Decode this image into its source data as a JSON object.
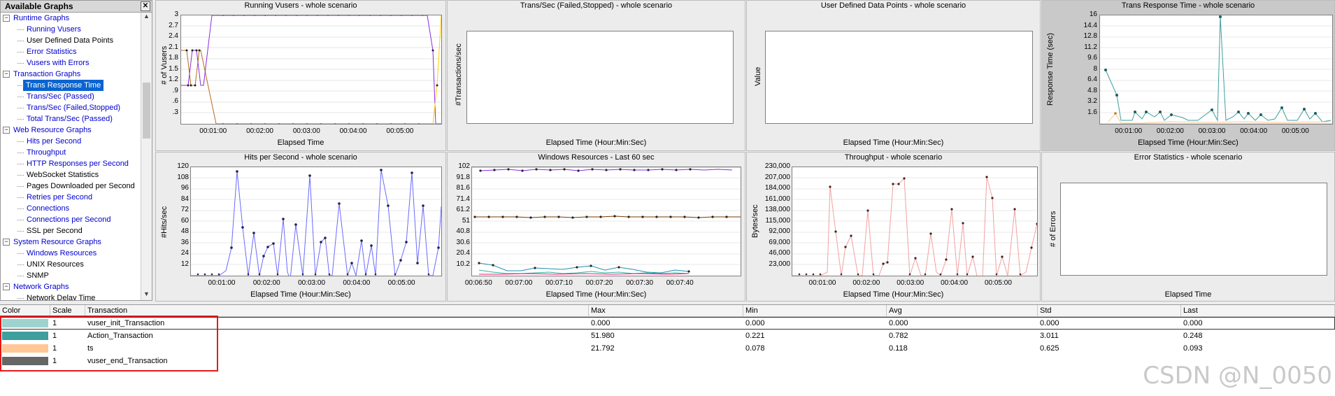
{
  "tree": {
    "title": "Available Graphs",
    "close": "✕",
    "items": [
      {
        "label": "Runtime Graphs",
        "kind": "cat",
        "expander": "−"
      },
      {
        "label": "Running Vusers",
        "kind": "link"
      },
      {
        "label": "User Defined Data Points",
        "kind": "plain"
      },
      {
        "label": "Error Statistics",
        "kind": "link"
      },
      {
        "label": "Vusers with Errors",
        "kind": "link"
      },
      {
        "label": "Transaction Graphs",
        "kind": "cat",
        "expander": "−"
      },
      {
        "label": "Trans Response Time",
        "kind": "sel"
      },
      {
        "label": "Trans/Sec (Passed)",
        "kind": "link"
      },
      {
        "label": "Trans/Sec (Failed,Stopped)",
        "kind": "link"
      },
      {
        "label": "Total Trans/Sec (Passed)",
        "kind": "link"
      },
      {
        "label": "Web Resource Graphs",
        "kind": "cat",
        "expander": "−"
      },
      {
        "label": "Hits per Second",
        "kind": "link"
      },
      {
        "label": "Throughput",
        "kind": "link"
      },
      {
        "label": "HTTP Responses per Second",
        "kind": "link"
      },
      {
        "label": "WebSocket Statistics",
        "kind": "plain"
      },
      {
        "label": "Pages Downloaded per Second",
        "kind": "plain"
      },
      {
        "label": "Retries per Second",
        "kind": "link"
      },
      {
        "label": "Connections",
        "kind": "link"
      },
      {
        "label": "Connections per Second",
        "kind": "link"
      },
      {
        "label": "SSL per Second",
        "kind": "plain"
      },
      {
        "label": "System Resource Graphs",
        "kind": "cat",
        "expander": "−"
      },
      {
        "label": "Windows Resources",
        "kind": "link"
      },
      {
        "label": "UNIX Resources",
        "kind": "plain"
      },
      {
        "label": "SNMP",
        "kind": "plain"
      },
      {
        "label": "Network Graphs",
        "kind": "cat",
        "expander": "−"
      },
      {
        "label": "Network Delay Time",
        "kind": "plain"
      }
    ]
  },
  "graphs": {
    "running_vusers": {
      "title": "Running Vusers - whole scenario",
      "ylabel": "# of Vusers",
      "xlabel": "Elapsed Time",
      "yticks": [
        "3",
        "2.7",
        "2.4",
        "2.1",
        "1.8",
        "1.5",
        "1.2",
        ".9",
        ".6",
        ".3"
      ],
      "xticks": [
        "00:01:00",
        "00:02:00",
        "00:03:00",
        "00:04:00",
        "00:05:00"
      ]
    },
    "trans_failed": {
      "title": "Trans/Sec (Failed,Stopped) - whole scenario",
      "ylabel": "#Transactions/sec",
      "xlabel": "Elapsed Time (Hour:Min:Sec)"
    },
    "user_defined": {
      "title": "User Defined Data Points - whole scenario",
      "ylabel": "Value",
      "xlabel": "Elapsed Time (Hour:Min:Sec)"
    },
    "trans_response": {
      "title": "Trans Response Time - whole scenario",
      "ylabel": "Response Time (sec)",
      "xlabel": "Elapsed Time (Hour:Min:Sec)",
      "yticks": [
        "16",
        "14.4",
        "12.8",
        "11.2",
        "9.6",
        "8",
        "6.4",
        "4.8",
        "3.2",
        "1.6"
      ],
      "xticks": [
        "00:01:00",
        "00:02:00",
        "00:03:00",
        "00:04:00",
        "00:05:00"
      ]
    },
    "hits": {
      "title": "Hits per Second - whole scenario",
      "ylabel": "#Hits/sec",
      "xlabel": "Elapsed Time (Hour:Min:Sec)",
      "yticks": [
        "120",
        "108",
        "96",
        "84",
        "72",
        "60",
        "48",
        "36",
        "24",
        "12"
      ],
      "xticks": [
        "00:01:00",
        "00:02:00",
        "00:03:00",
        "00:04:00",
        "00:05:00"
      ]
    },
    "windows": {
      "title": "Windows Resources - Last 60 sec",
      "xlabel": "Elapsed Time (Hour:Min:Sec)",
      "yticks": [
        "102",
        "91.8",
        "81.6",
        "71.4",
        "61.2",
        "51",
        "40.8",
        "30.6",
        "20.4",
        "10.2"
      ],
      "xticks": [
        "00:06:50",
        "00:07:00",
        "00:07:10",
        "00:07:20",
        "00:07:30",
        "00:07:40"
      ]
    },
    "throughput": {
      "title": "Throughput - whole scenario",
      "ylabel": "Bytes/sec",
      "xlabel": "Elapsed Time (Hour:Min:Sec)",
      "yticks": [
        "230,000",
        "207,000",
        "184,000",
        "161,000",
        "138,000",
        "115,000",
        "92,000",
        "69,000",
        "46,000",
        "23,000"
      ],
      "xticks": [
        "00:01:00",
        "00:02:00",
        "00:03:00",
        "00:04:00",
        "00:05:00"
      ]
    },
    "errors": {
      "title": "Error Statistics - whole scenario",
      "ylabel": "# of Errors",
      "xlabel": "Elapsed Time"
    }
  },
  "legend": {
    "headers": {
      "color": "Color",
      "scale": "Scale",
      "transaction": "Transaction",
      "max": "Max",
      "min": "Min",
      "avg": "Avg",
      "std": "Std",
      "last": "Last"
    },
    "rows": [
      {
        "color": "#9fd2cf",
        "scale": "1",
        "transaction": "vuser_init_Transaction",
        "max": "0.000",
        "min": "0.000",
        "avg": "0.000",
        "std": "0.000",
        "last": "0.000"
      },
      {
        "color": "#3f9e9e",
        "scale": "1",
        "transaction": "Action_Transaction",
        "max": "51.980",
        "min": "0.221",
        "avg": "0.782",
        "std": "3.011",
        "last": "0.248"
      },
      {
        "color": "#ffc795",
        "scale": "1",
        "transaction": "ts",
        "max": "21.792",
        "min": "0.078",
        "avg": "0.118",
        "std": "0.625",
        "last": "0.093"
      },
      {
        "color": "#666666",
        "scale": "1",
        "transaction": "vuser_end_Transaction",
        "max": "",
        "min": "",
        "avg": "",
        "std": "",
        "last": ""
      }
    ]
  },
  "watermark": "CSDN @N_0050"
}
